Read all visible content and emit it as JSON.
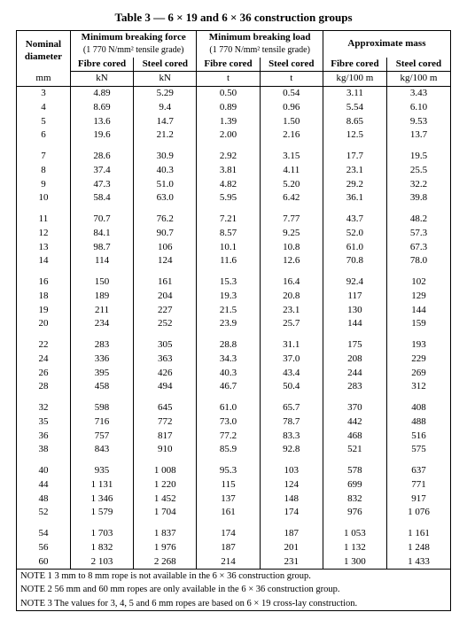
{
  "title": "Table 3 — 6 × 19 and 6 × 36 construction groups",
  "headers": {
    "nominal": "Nominal\ndiameter",
    "mbf": "Minimum breaking force",
    "mbl": "Minimum breaking load",
    "approx": "Approximate mass",
    "tensile": "(1 770 N/mm² tensile grade)",
    "fibre": "Fibre cored",
    "steel": "Steel cored",
    "mm": "mm",
    "kN": "kN",
    "t": "t",
    "kg": "kg/100 m"
  },
  "groups": [
    [
      [
        "3",
        "4.89",
        "5.29",
        "0.50",
        "0.54",
        "3.11",
        "3.43"
      ],
      [
        "4",
        "8.69",
        "9.4",
        "0.89",
        "0.96",
        "5.54",
        "6.10"
      ],
      [
        "5",
        "13.6",
        "14.7",
        "1.39",
        "1.50",
        "8.65",
        "9.53"
      ],
      [
        "6",
        "19.6",
        "21.2",
        "2.00",
        "2.16",
        "12.5",
        "13.7"
      ]
    ],
    [
      [
        "7",
        "28.6",
        "30.9",
        "2.92",
        "3.15",
        "17.7",
        "19.5"
      ],
      [
        "8",
        "37.4",
        "40.3",
        "3.81",
        "4.11",
        "23.1",
        "25.5"
      ],
      [
        "9",
        "47.3",
        "51.0",
        "4.82",
        "5.20",
        "29.2",
        "32.2"
      ],
      [
        "10",
        "58.4",
        "63.0",
        "5.95",
        "6.42",
        "36.1",
        "39.8"
      ]
    ],
    [
      [
        "11",
        "70.7",
        "76.2",
        "7.21",
        "7.77",
        "43.7",
        "48.2"
      ],
      [
        "12",
        "84.1",
        "90.7",
        "8.57",
        "9.25",
        "52.0",
        "57.3"
      ],
      [
        "13",
        "98.7",
        "106",
        "10.1",
        "10.8",
        "61.0",
        "67.3"
      ],
      [
        "14",
        "114",
        "124",
        "11.6",
        "12.6",
        "70.8",
        "78.0"
      ]
    ],
    [
      [
        "16",
        "150",
        "161",
        "15.3",
        "16.4",
        "92.4",
        "102"
      ],
      [
        "18",
        "189",
        "204",
        "19.3",
        "20.8",
        "117",
        "129"
      ],
      [
        "19",
        "211",
        "227",
        "21.5",
        "23.1",
        "130",
        "144"
      ],
      [
        "20",
        "234",
        "252",
        "23.9",
        "25.7",
        "144",
        "159"
      ]
    ],
    [
      [
        "22",
        "283",
        "305",
        "28.8",
        "31.1",
        "175",
        "193"
      ],
      [
        "24",
        "336",
        "363",
        "34.3",
        "37.0",
        "208",
        "229"
      ],
      [
        "26",
        "395",
        "426",
        "40.3",
        "43.4",
        "244",
        "269"
      ],
      [
        "28",
        "458",
        "494",
        "46.7",
        "50.4",
        "283",
        "312"
      ]
    ],
    [
      [
        "32",
        "598",
        "645",
        "61.0",
        "65.7",
        "370",
        "408"
      ],
      [
        "35",
        "716",
        "772",
        "73.0",
        "78.7",
        "442",
        "488"
      ],
      [
        "36",
        "757",
        "817",
        "77.2",
        "83.3",
        "468",
        "516"
      ],
      [
        "38",
        "843",
        "910",
        "85.9",
        "92.8",
        "521",
        "575"
      ]
    ],
    [
      [
        "40",
        "935",
        "1 008",
        "95.3",
        "103",
        "578",
        "637"
      ],
      [
        "44",
        "1 131",
        "1 220",
        "115",
        "124",
        "699",
        "771"
      ],
      [
        "48",
        "1 346",
        "1 452",
        "137",
        "148",
        "832",
        "917"
      ],
      [
        "52",
        "1 579",
        "1 704",
        "161",
        "174",
        "976",
        "1 076"
      ]
    ],
    [
      [
        "54",
        "1 703",
        "1 837",
        "174",
        "187",
        "1 053",
        "1 161"
      ],
      [
        "56",
        "1 832",
        "1 976",
        "187",
        "201",
        "1 132",
        "1 248"
      ],
      [
        "60",
        "2 103",
        "2 268",
        "214",
        "231",
        "1 300",
        "1 433"
      ]
    ]
  ],
  "notes": [
    "NOTE 1   3 mm to 8 mm rope is not available in the 6 × 36 construction group.",
    "NOTE 2   56 mm and 60 mm ropes are only available in the 6 × 36 construction group.",
    "NOTE 3   The values for 3, 4, 5 and 6 mm ropes are based on 6 × 19 cross-lay construction."
  ]
}
